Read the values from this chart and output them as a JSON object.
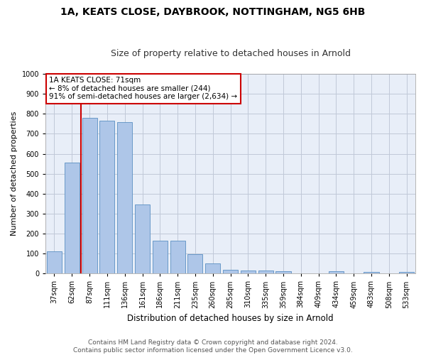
{
  "title_line1": "1A, KEATS CLOSE, DAYBROOK, NOTTINGHAM, NG5 6HB",
  "title_line2": "Size of property relative to detached houses in Arnold",
  "xlabel": "Distribution of detached houses by size in Arnold",
  "ylabel": "Number of detached properties",
  "categories": [
    "37sqm",
    "62sqm",
    "87sqm",
    "111sqm",
    "136sqm",
    "161sqm",
    "186sqm",
    "211sqm",
    "235sqm",
    "260sqm",
    "285sqm",
    "310sqm",
    "335sqm",
    "359sqm",
    "384sqm",
    "409sqm",
    "434sqm",
    "459sqm",
    "483sqm",
    "508sqm",
    "533sqm"
  ],
  "values": [
    112,
    557,
    778,
    765,
    760,
    345,
    165,
    165,
    98,
    52,
    20,
    15,
    15,
    10,
    0,
    0,
    10,
    0,
    8,
    0,
    8
  ],
  "bar_color": "#aec6e8",
  "bar_edge_color": "#5a8fc2",
  "vline_color": "#cc0000",
  "vline_x_index": 1,
  "annotation_text": "1A KEATS CLOSE: 71sqm\n← 8% of detached houses are smaller (244)\n91% of semi-detached houses are larger (2,634) →",
  "annotation_box_color": "#ffffff",
  "annotation_box_edge": "#cc0000",
  "ylim": [
    0,
    1000
  ],
  "yticks": [
    0,
    100,
    200,
    300,
    400,
    500,
    600,
    700,
    800,
    900,
    1000
  ],
  "footer_line1": "Contains HM Land Registry data © Crown copyright and database right 2024.",
  "footer_line2": "Contains public sector information licensed under the Open Government Licence v3.0.",
  "background_color": "#e8eef8",
  "plot_background": "#ffffff",
  "grid_color": "#c0c8d8",
  "title_fontsize": 10,
  "subtitle_fontsize": 9,
  "ylabel_fontsize": 8,
  "xlabel_fontsize": 8.5,
  "tick_fontsize": 7,
  "annotation_fontsize": 7.5,
  "footer_fontsize": 6.5,
  "bar_width": 0.85
}
